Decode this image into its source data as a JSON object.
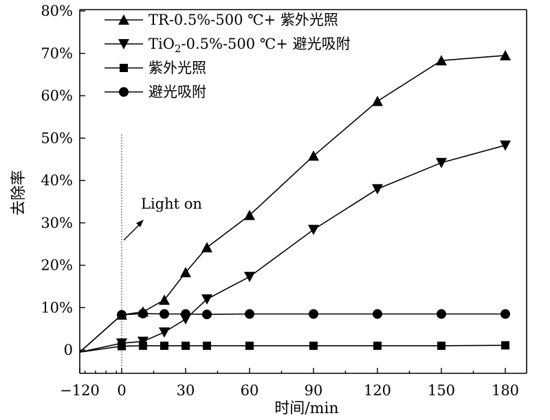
{
  "chart_data": {
    "type": "line",
    "xlabel": "时间/min",
    "ylabel": "去除率",
    "xlim": [
      -120,
      180
    ],
    "ylim": [
      0,
      80
    ],
    "x_ticks": [
      {
        "value": -120,
        "label": "−120"
      },
      {
        "value": 0,
        "label": "0"
      },
      {
        "value": 30,
        "label": "30"
      },
      {
        "value": 60,
        "label": "60"
      },
      {
        "value": 90,
        "label": "90"
      },
      {
        "value": 120,
        "label": "120"
      },
      {
        "value": 150,
        "label": "150"
      },
      {
        "value": 180,
        "label": "180"
      }
    ],
    "y_ticks": [
      {
        "value": 0,
        "label": "0"
      },
      {
        "value": 10,
        "label": "10%"
      },
      {
        "value": 20,
        "label": "20%"
      },
      {
        "value": 30,
        "label": "30%"
      },
      {
        "value": 40,
        "label": "40%"
      },
      {
        "value": 50,
        "label": "50%"
      },
      {
        "value": 60,
        "label": "60%"
      },
      {
        "value": 70,
        "label": "70%"
      },
      {
        "value": 80,
        "label": "80%"
      }
    ],
    "legend_position": "top-left",
    "grid": false,
    "annotation": {
      "text": "Light on",
      "x": 0
    },
    "series": [
      {
        "name": "TR-0.5%-500 ℃+ 紫外光照",
        "marker": "triangle-up",
        "x": [
          -120,
          0,
          10,
          20,
          30,
          40,
          60,
          90,
          120,
          150,
          180
        ],
        "values": [
          -0.5,
          8.3,
          9.0,
          11.8,
          18.3,
          24.2,
          31.8,
          45.8,
          58.7,
          68.3,
          69.5
        ]
      },
      {
        "name_main": "TiO",
        "name_sub": "2",
        "name_rest": "-0.5%-500 ℃+ 避光吸附",
        "marker": "triangle-down",
        "x": [
          -120,
          0,
          10,
          20,
          30,
          40,
          60,
          90,
          120,
          150,
          180
        ],
        "values": [
          -0.5,
          1.6,
          2.0,
          4.2,
          7.3,
          12.0,
          17.3,
          28.4,
          38.0,
          44.2,
          48.3
        ]
      },
      {
        "name": "紫外光照",
        "marker": "square",
        "x": [
          -120,
          0,
          10,
          20,
          30,
          40,
          60,
          90,
          120,
          150,
          180
        ],
        "values": [
          -0.5,
          0.9,
          1.0,
          1.0,
          1.0,
          1.0,
          1.0,
          1.0,
          1.0,
          1.0,
          1.1
        ]
      },
      {
        "name": "避光吸附",
        "marker": "circle",
        "x": [
          -120,
          0,
          10,
          20,
          30,
          40,
          60,
          90,
          120,
          150,
          180
        ],
        "values": [
          -0.5,
          8.3,
          8.6,
          8.5,
          8.5,
          8.4,
          8.5,
          8.5,
          8.5,
          8.5,
          8.5
        ]
      }
    ]
  }
}
